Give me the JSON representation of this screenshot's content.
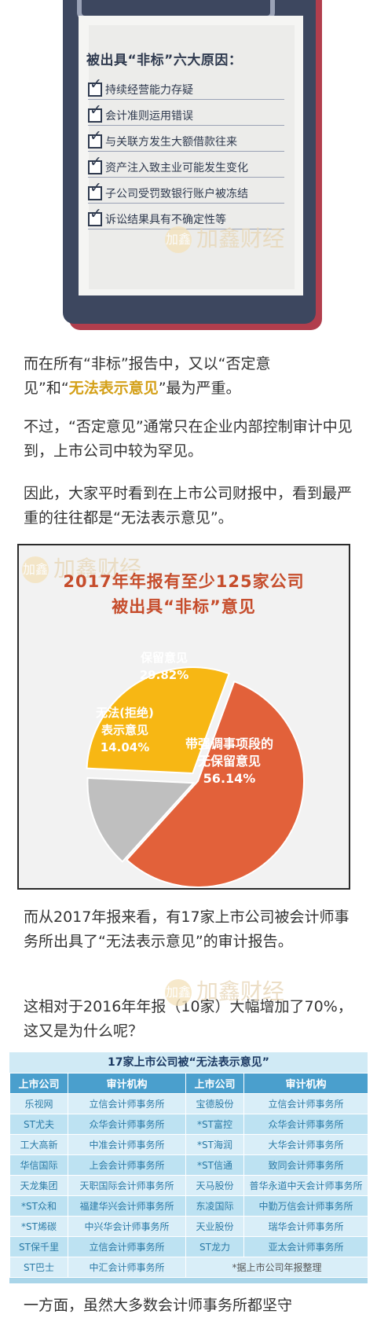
{
  "clipboard": {
    "title": "被出具“非标”六大原因：",
    "reasons": [
      "持续经营能力存疑",
      "会计准则运用错误",
      "与关联方发生大额借款往来",
      "资产注入致主业可能发生变化",
      "子公司受罚致银行账户被冻结",
      "诉讼结果具有不确定性等"
    ]
  },
  "watermark": {
    "text": "加鑫财经",
    "logo": "加鑫"
  },
  "paragraphs": {
    "p1_a": "而在所有“非标”报告中，又以“否定意",
    "p1_b": "见”和“",
    "p1_hl": "无法表示意见",
    "p1_c": "”最为严重。",
    "p2": "不过，“否定意见”通常只在企业内部控制审计中见到，上市公司中较为罕见。",
    "p3": "因此，大家平时看到在上市公司财报中，看到最严重的往往都是“无法表示意见”。",
    "p4": "而从2017年报来看，有17家上市公司被会计师事务所出具了“无法表示意见”的审计报告。",
    "p5": "这相对于2016年年报（10家）大幅增加了70%，这又是为什么呢？",
    "p6": "一方面，虽然大多数会计师事务所都坚守"
  },
  "chart_data": {
    "type": "pie",
    "title": "2017年年报有至少125家公司",
    "subtitle": "被出具“非标”意见",
    "series": [
      {
        "label_line1": "带强调事项段的",
        "label_line2": "无保留意见",
        "value": 56.14,
        "display": "56.14%",
        "color": "#e2613a"
      },
      {
        "label_line1": "无法(拒绝)",
        "label_line2": "表示意见",
        "value": 14.04,
        "display": "14.04%",
        "color": "#bfbfbf"
      },
      {
        "label_line1": "保留意见",
        "label_line2": "",
        "value": 29.82,
        "display": "29.82%",
        "color": "#f7b714"
      }
    ]
  },
  "table": {
    "title": "17家上市公司被“无法表示意见”",
    "headers": [
      "上市公司",
      "审计机构",
      "上市公司",
      "审计机构"
    ],
    "rows": [
      [
        "乐视网",
        "立信会计师事务所",
        "宝德股份",
        "立信会计师事务所"
      ],
      [
        "ST尤夫",
        "众华会计师事务所",
        "*ST富控",
        "众华会计师事务所"
      ],
      [
        "工大高新",
        "中准会计师事务所",
        "*ST海润",
        "大华会计师事务所"
      ],
      [
        "华信国际",
        "上会会计师事务所",
        "*ST信通",
        "致同会计师事务所"
      ],
      [
        "天龙集团",
        "天职国际会计师事务所",
        "天马股份",
        "普华永道中天会计师事务所"
      ],
      [
        "*ST众和",
        "福建华兴会计师事务所",
        "东凌国际",
        "中勤万信会计师事务所"
      ],
      [
        "*ST烯碳",
        "中兴华会计师事务所",
        "天业股份",
        "瑞华会计师事务所"
      ],
      [
        "ST保千里",
        "立信会计师事务所",
        "ST龙力",
        "亚太会计师事务所"
      ],
      [
        "ST巴士",
        "中汇会计师事务所",
        "*据上市公司年报整理",
        ""
      ]
    ]
  }
}
